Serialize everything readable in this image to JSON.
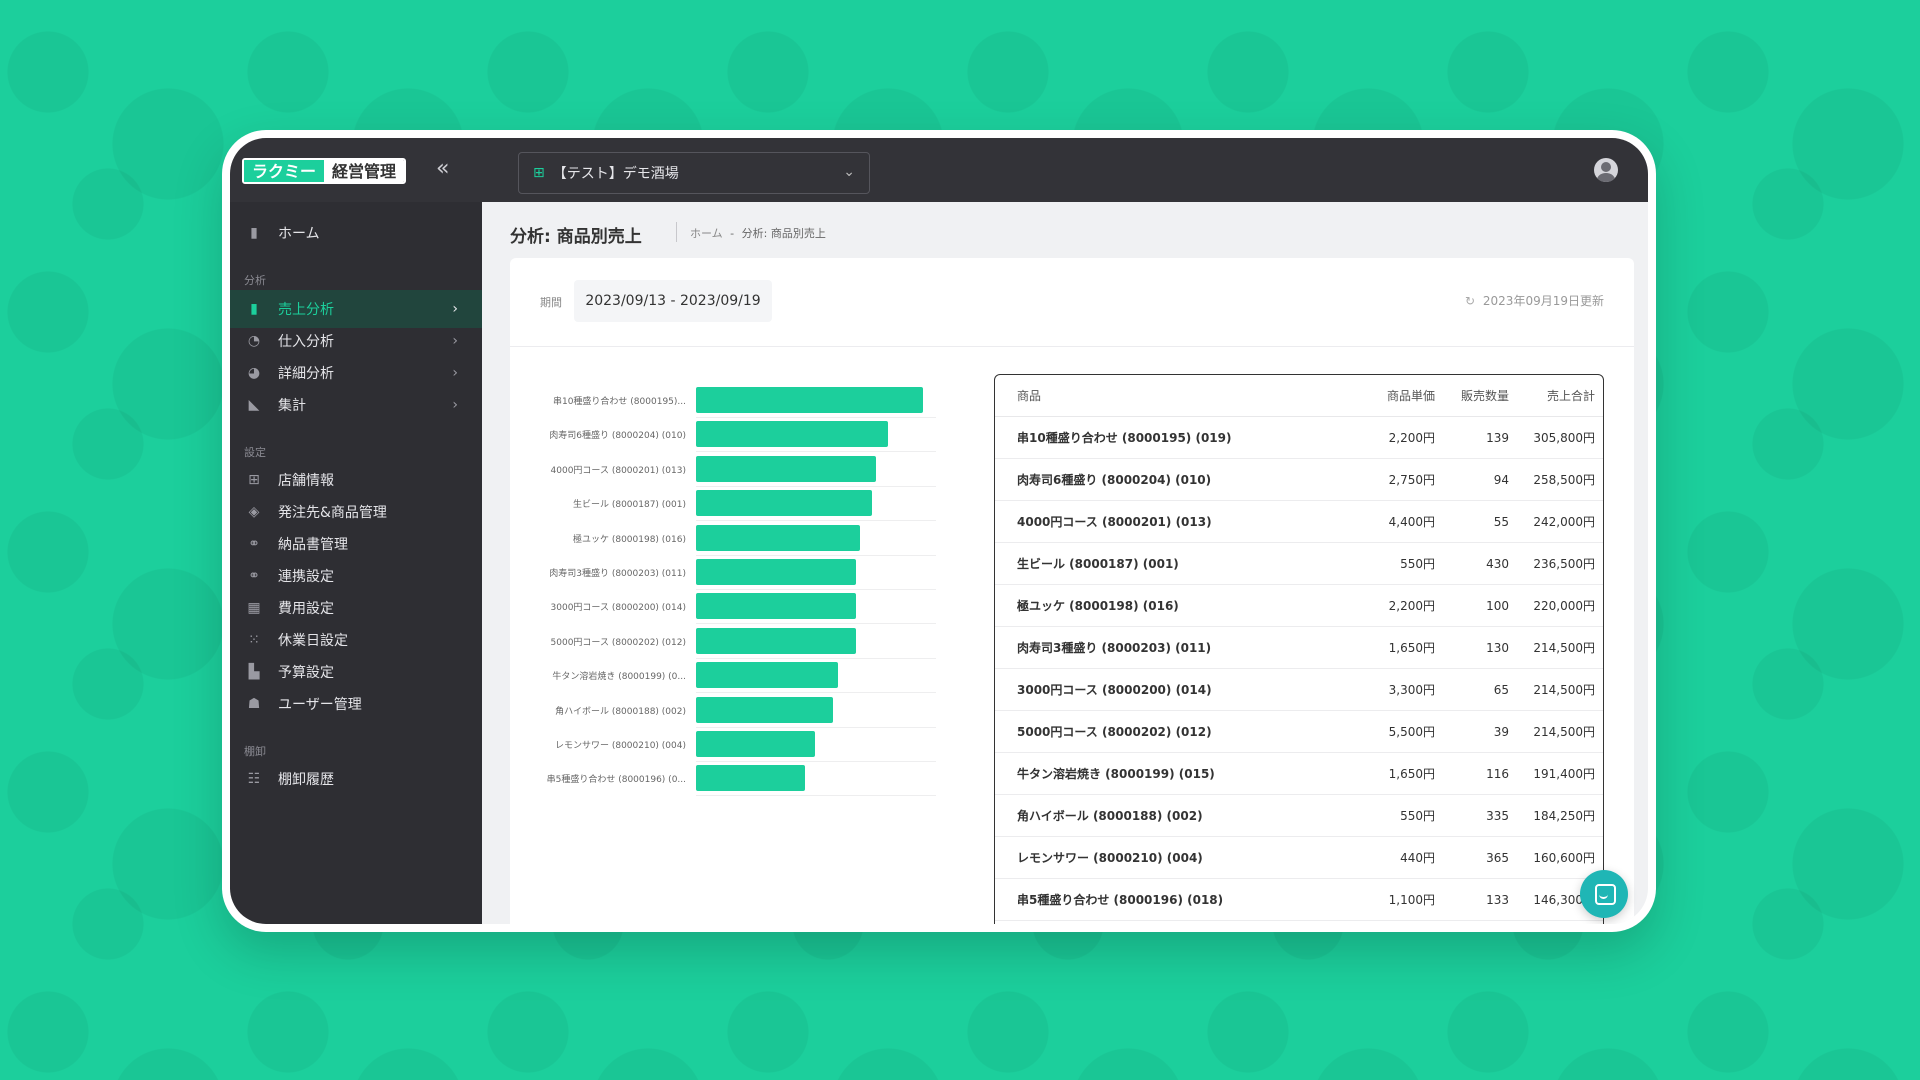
{
  "app": {
    "logo_left": "ラクミー",
    "logo_right": "経営管理",
    "collapse_icon": "«",
    "store_name": "【テスト】デモ酒場"
  },
  "sidebar": {
    "home": "ホーム",
    "section_analysis": "分析",
    "analysis_items": [
      {
        "label": "売上分析",
        "active": true
      },
      {
        "label": "仕入分析"
      },
      {
        "label": "詳細分析"
      },
      {
        "label": "集計"
      }
    ],
    "section_settings": "設定",
    "settings_items": [
      {
        "label": "店舗情報"
      },
      {
        "label": "発注先&商品管理"
      },
      {
        "label": "納品書管理"
      },
      {
        "label": "連携設定"
      },
      {
        "label": "費用設定"
      },
      {
        "label": "休業日設定"
      },
      {
        "label": "予算設定"
      },
      {
        "label": "ユーザー管理"
      }
    ],
    "section_inventory": "棚卸",
    "inventory_items": [
      {
        "label": "棚卸履歴"
      }
    ]
  },
  "page": {
    "title": "分析: 商品別売上",
    "breadcrumb_home": "ホーム",
    "breadcrumb_sep": "-",
    "breadcrumb_current": "分析: 商品別売上",
    "period_label": "期間",
    "period_value": "2023/09/13 - 2023/09/19",
    "updated": "2023年09月19日更新"
  },
  "chart_data": {
    "type": "bar",
    "orientation": "horizontal",
    "categories": [
      "串10種盛り合わせ (8000195)...",
      "肉寿司6種盛り (8000204) (010)",
      "4000円コース (8000201) (013)",
      "生ビール (8000187) (001)",
      "極ユッケ (8000198) (016)",
      "肉寿司3種盛り (8000203) (011)",
      "3000円コース (8000200) (014)",
      "5000円コース (8000202) (012)",
      "牛タン溶岩焼き (8000199) (0...",
      "角ハイボール (8000188) (002)",
      "レモンサワー (8000210) (004)",
      "串5種盛り合わせ (8000196) (0..."
    ],
    "values": [
      305800,
      258500,
      242000,
      236500,
      220000,
      214500,
      214500,
      214500,
      191400,
      184250,
      160600,
      146300
    ],
    "xlim": [
      0,
      320000
    ]
  },
  "table": {
    "headers": [
      "商品",
      "商品単価",
      "販売数量",
      "売上合計"
    ],
    "rows": [
      [
        "串10種盛り合わせ (8000195) (019)",
        "2,200円",
        "139",
        "305,800円"
      ],
      [
        "肉寿司6種盛り (8000204) (010)",
        "2,750円",
        "94",
        "258,500円"
      ],
      [
        "4000円コース (8000201) (013)",
        "4,400円",
        "55",
        "242,000円"
      ],
      [
        "生ビール (8000187) (001)",
        "550円",
        "430",
        "236,500円"
      ],
      [
        "極ユッケ (8000198) (016)",
        "2,200円",
        "100",
        "220,000円"
      ],
      [
        "肉寿司3種盛り (8000203) (011)",
        "1,650円",
        "130",
        "214,500円"
      ],
      [
        "3000円コース (8000200) (014)",
        "3,300円",
        "65",
        "214,500円"
      ],
      [
        "5000円コース (8000202) (012)",
        "5,500円",
        "39",
        "214,500円"
      ],
      [
        "牛タン溶岩焼き (8000199) (015)",
        "1,650円",
        "116",
        "191,400円"
      ],
      [
        "角ハイボール (8000188) (002)",
        "550円",
        "335",
        "184,250円"
      ],
      [
        "レモンサワー (8000210) (004)",
        "440円",
        "365",
        "160,600円"
      ],
      [
        "串5種盛り合わせ (8000196) (018)",
        "1,100円",
        "133",
        "146,300円"
      ]
    ]
  },
  "colors": {
    "accent": "#1ccf9c",
    "sidebar": "#2e2e33",
    "topbar": "#333338"
  }
}
